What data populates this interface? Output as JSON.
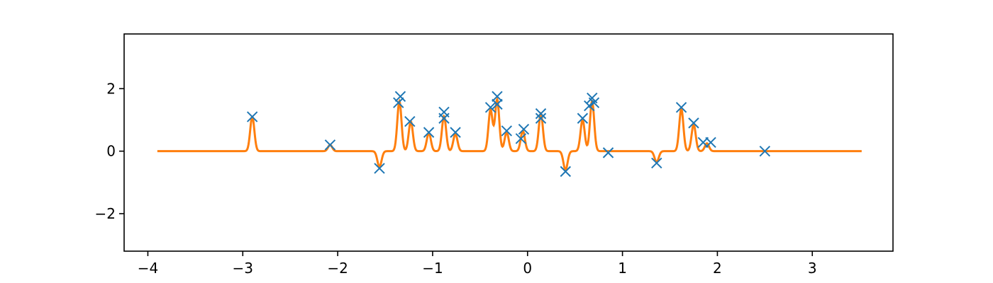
{
  "chart_data": {
    "type": "line",
    "title": "",
    "xlabel": "",
    "ylabel": "",
    "xlim": [
      -4.25,
      3.85
    ],
    "ylim": [
      -3.2,
      3.75
    ],
    "grid": false,
    "legend": "none",
    "x_ticks": [
      {
        "value": -4,
        "label": "−4"
      },
      {
        "value": -3,
        "label": "−3"
      },
      {
        "value": -2,
        "label": "−2"
      },
      {
        "value": -1,
        "label": "−1"
      },
      {
        "value": 0,
        "label": "0"
      },
      {
        "value": 1,
        "label": "1"
      },
      {
        "value": 2,
        "label": "2"
      },
      {
        "value": 3,
        "label": "3"
      }
    ],
    "y_ticks": [
      {
        "value": -2,
        "label": "−2"
      },
      {
        "value": 0,
        "label": "0"
      },
      {
        "value": 2,
        "label": "2"
      }
    ],
    "series": [
      {
        "kind": "scatter",
        "marker": "x",
        "color": "#1f77b4",
        "points": [
          {
            "x": -2.9,
            "y": 1.1
          },
          {
            "x": -2.08,
            "y": 0.2
          },
          {
            "x": -1.56,
            "y": -0.55
          },
          {
            "x": -1.36,
            "y": 1.55
          },
          {
            "x": -1.34,
            "y": 1.75
          },
          {
            "x": -1.24,
            "y": 0.95
          },
          {
            "x": -1.04,
            "y": 0.6
          },
          {
            "x": -0.88,
            "y": 1.25
          },
          {
            "x": -0.88,
            "y": 1.05
          },
          {
            "x": -0.76,
            "y": 0.6
          },
          {
            "x": -0.39,
            "y": 1.4
          },
          {
            "x": -0.32,
            "y": 1.75
          },
          {
            "x": -0.32,
            "y": 1.5
          },
          {
            "x": -0.22,
            "y": 0.65
          },
          {
            "x": -0.07,
            "y": 0.4
          },
          {
            "x": -0.04,
            "y": 0.7
          },
          {
            "x": 0.14,
            "y": 1.2
          },
          {
            "x": 0.14,
            "y": 1.05
          },
          {
            "x": 0.4,
            "y": -0.65
          },
          {
            "x": 0.58,
            "y": 1.05
          },
          {
            "x": 0.65,
            "y": 1.45
          },
          {
            "x": 0.68,
            "y": 1.7
          },
          {
            "x": 0.7,
            "y": 1.55
          },
          {
            "x": 0.85,
            "y": -0.05
          },
          {
            "x": 1.36,
            "y": -0.38
          },
          {
            "x": 1.62,
            "y": 1.4
          },
          {
            "x": 1.75,
            "y": 0.9
          },
          {
            "x": 1.85,
            "y": 0.28
          },
          {
            "x": 1.93,
            "y": 0.28
          },
          {
            "x": 2.5,
            "y": 0.0
          }
        ]
      },
      {
        "kind": "line",
        "color": "#ff7f0e",
        "x_range": [
          -3.9,
          3.52
        ],
        "bumps": [
          {
            "x": -2.9,
            "a": 1.1
          },
          {
            "x": -2.08,
            "a": 0.2
          },
          {
            "x": -1.56,
            "a": -0.5
          },
          {
            "x": -1.35,
            "a": 1.6
          },
          {
            "x": -1.23,
            "a": 0.95
          },
          {
            "x": -1.04,
            "a": 0.58
          },
          {
            "x": -0.88,
            "a": 1.12
          },
          {
            "x": -0.76,
            "a": 0.55
          },
          {
            "x": -0.39,
            "a": 1.32
          },
          {
            "x": -0.32,
            "a": 1.65
          },
          {
            "x": -0.22,
            "a": 0.6
          },
          {
            "x": -0.05,
            "a": 0.65
          },
          {
            "x": 0.14,
            "a": 1.2
          },
          {
            "x": 0.4,
            "a": -0.6
          },
          {
            "x": 0.58,
            "a": 1.0
          },
          {
            "x": 0.68,
            "a": 1.6
          },
          {
            "x": 1.36,
            "a": -0.35
          },
          {
            "x": 1.62,
            "a": 1.35
          },
          {
            "x": 1.75,
            "a": 0.85
          },
          {
            "x": 1.89,
            "a": 0.25
          }
        ],
        "bump_width": 0.022
      }
    ]
  }
}
